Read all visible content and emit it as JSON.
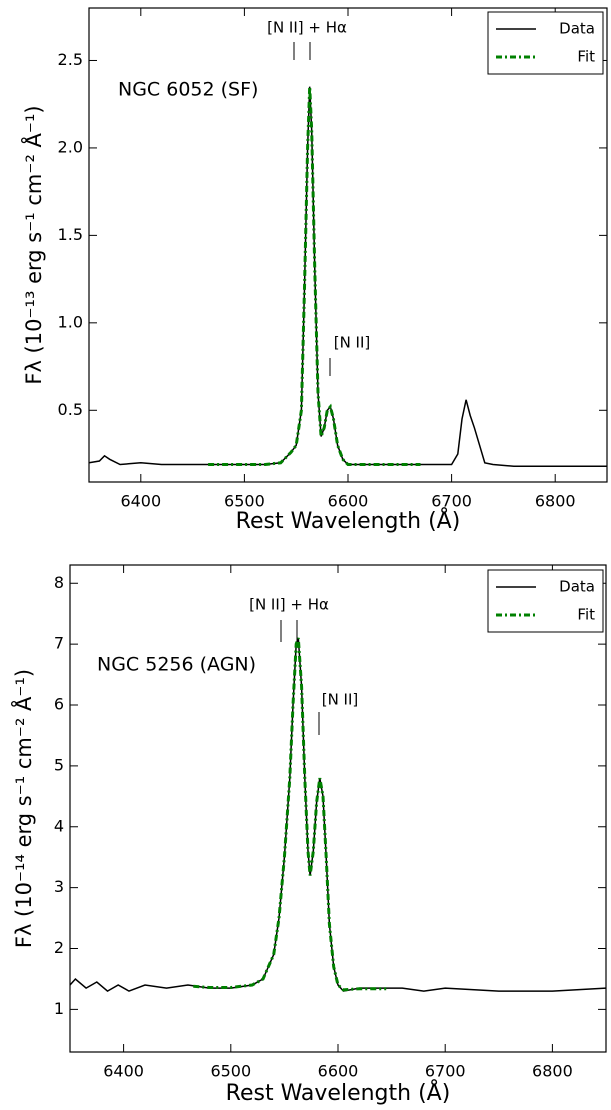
{
  "chart_data": [
    {
      "type": "line",
      "xlabel": "Rest Wavelength (Å)",
      "ylabel": "Fλ (10⁻¹³ erg s⁻¹ cm⁻² Å⁻¹)",
      "annotations": [
        "[N II] + Hα",
        "[N II]",
        "NGC 6052  (SF)"
      ],
      "xlim": [
        6350,
        6850
      ],
      "xticks": [
        6400,
        6500,
        6600,
        6700,
        6800
      ],
      "ylim": [
        0.09,
        2.8
      ],
      "yticks": [
        0.5,
        {
          "value": 1.0,
          "label": "1.0"
        },
        1.5,
        {
          "value": 2.0,
          "label": "2.0"
        },
        2.5
      ],
      "legend": "upper right",
      "series": [
        {
          "name": "Data",
          "color": "#000000",
          "style": "solid",
          "x": [
            6350,
            6360,
            6365,
            6370,
            6380,
            6400,
            6420,
            6440,
            6460,
            6480,
            6500,
            6520,
            6535,
            6545,
            6550,
            6555,
            6558,
            6561,
            6563,
            6565,
            6568,
            6571,
            6574,
            6577,
            6580,
            6583,
            6586,
            6590,
            6595,
            6600,
            6620,
            6640,
            6660,
            6680,
            6700,
            6706,
            6710,
            6714,
            6718,
            6722,
            6727,
            6732,
            6740,
            6760,
            6800,
            6850
          ],
          "values": [
            0.2,
            0.21,
            0.24,
            0.22,
            0.19,
            0.2,
            0.19,
            0.19,
            0.19,
            0.19,
            0.19,
            0.19,
            0.2,
            0.26,
            0.3,
            0.5,
            1.2,
            2.0,
            2.35,
            2.1,
            1.3,
            0.6,
            0.35,
            0.4,
            0.5,
            0.52,
            0.45,
            0.3,
            0.22,
            0.19,
            0.19,
            0.19,
            0.19,
            0.19,
            0.19,
            0.25,
            0.45,
            0.56,
            0.47,
            0.4,
            0.3,
            0.2,
            0.19,
            0.18,
            0.18,
            0.18
          ]
        },
        {
          "name": "Fit",
          "color": "#008000",
          "style": "dash-dot",
          "x": [
            6465,
            6480,
            6500,
            6520,
            6535,
            6545,
            6550,
            6555,
            6558,
            6561,
            6563,
            6565,
            6568,
            6571,
            6574,
            6577,
            6580,
            6583,
            6586,
            6590,
            6595,
            6600,
            6620,
            6640,
            6670
          ],
          "values": [
            0.19,
            0.19,
            0.19,
            0.19,
            0.2,
            0.26,
            0.3,
            0.5,
            1.2,
            2.0,
            2.35,
            2.1,
            1.3,
            0.6,
            0.35,
            0.4,
            0.5,
            0.52,
            0.45,
            0.3,
            0.22,
            0.19,
            0.19,
            0.19,
            0.19
          ]
        }
      ]
    },
    {
      "type": "line",
      "xlabel": "Rest Wavelength (Å)",
      "ylabel": "Fλ (10⁻¹⁴ erg s⁻¹ cm⁻² Å⁻¹)",
      "annotations": [
        "[N II] + Hα",
        "[N II]",
        "NGC 5256  (AGN)"
      ],
      "xlim": [
        6350,
        6850
      ],
      "xticks": [
        6400,
        6500,
        6600,
        6700,
        6800
      ],
      "ylim": [
        0.3,
        8.3
      ],
      "yticks": [
        1,
        2,
        3,
        4,
        5,
        6,
        7,
        8
      ],
      "legend": "upper right",
      "series": [
        {
          "name": "Data",
          "color": "#000000",
          "style": "solid",
          "x": [
            6350,
            6355,
            6365,
            6375,
            6385,
            6395,
            6405,
            6420,
            6440,
            6460,
            6480,
            6500,
            6520,
            6530,
            6540,
            6545,
            6550,
            6555,
            6558,
            6561,
            6563,
            6566,
            6569,
            6572,
            6574,
            6577,
            6580,
            6583,
            6586,
            6589,
            6592,
            6596,
            6600,
            6605,
            6620,
            6640,
            6660,
            6680,
            6700,
            6750,
            6800,
            6850
          ],
          "values": [
            1.4,
            1.5,
            1.35,
            1.45,
            1.3,
            1.4,
            1.3,
            1.4,
            1.35,
            1.4,
            1.35,
            1.35,
            1.4,
            1.5,
            1.9,
            2.5,
            3.5,
            4.8,
            6.0,
            7.0,
            7.1,
            6.3,
            4.8,
            3.6,
            3.2,
            3.6,
            4.4,
            4.8,
            4.5,
            3.5,
            2.4,
            1.7,
            1.4,
            1.3,
            1.35,
            1.35,
            1.35,
            1.3,
            1.35,
            1.3,
            1.3,
            1.35
          ]
        },
        {
          "name": "Fit",
          "color": "#008000",
          "style": "dash-dot",
          "x": [
            6465,
            6480,
            6500,
            6520,
            6530,
            6540,
            6545,
            6550,
            6555,
            6558,
            6561,
            6563,
            6566,
            6569,
            6572,
            6574,
            6577,
            6580,
            6583,
            6586,
            6589,
            6592,
            6596,
            6600,
            6605,
            6620,
            6645
          ],
          "values": [
            1.38,
            1.36,
            1.36,
            1.4,
            1.5,
            1.9,
            2.5,
            3.5,
            4.8,
            6.0,
            7.0,
            7.1,
            6.3,
            4.8,
            3.6,
            3.2,
            3.6,
            4.4,
            4.8,
            4.5,
            3.5,
            2.4,
            1.7,
            1.4,
            1.32,
            1.34,
            1.34
          ]
        }
      ]
    }
  ]
}
